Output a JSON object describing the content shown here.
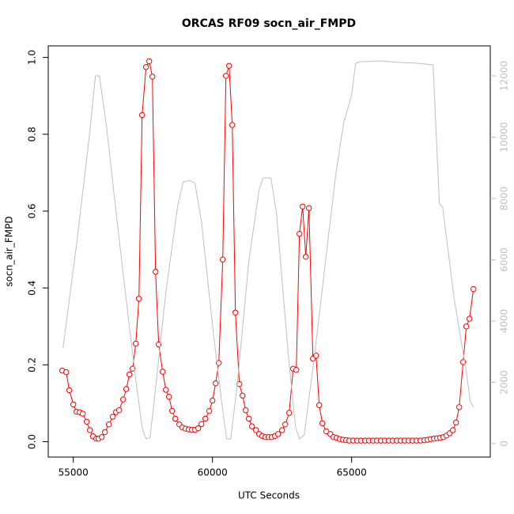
{
  "chart_data": {
    "type": "line",
    "title": "ORCAS RF09 socn_air_FMPD",
    "x_label": "UTC Seconds",
    "y_label": "socn_air_FMPD",
    "xlim": [
      54100,
      69980
    ],
    "xticks": [
      55000,
      60000,
      65000
    ],
    "ylim": [
      -0.04,
      1.03
    ],
    "yticks": [
      {
        "value": 0,
        "label": "0.0"
      },
      0.2,
      0.4,
      0.6,
      0.8,
      {
        "value": 1,
        "label": "1.0"
      }
    ],
    "y2lim": [
      -440,
      12980
    ],
    "y2ticks": [
      0,
      2000,
      4000,
      6000,
      8000,
      10000,
      12000
    ],
    "series": [
      {
        "color": "#ff0000",
        "markers": true,
        "axis": "y",
        "x": [
          54602,
          54744,
          54858,
          55000,
          55114,
          55227,
          55341,
          55483,
          55597,
          55710,
          55824,
          55909,
          56023,
          56136,
          56278,
          56420,
          56534,
          56648,
          56790,
          56903,
          57017,
          57131,
          57244,
          57358,
          57472,
          57614,
          57727,
          57841,
          57955,
          58068,
          58210,
          58324,
          58438,
          58551,
          58665,
          58807,
          58920,
          59034,
          59148,
          59261,
          59375,
          59489,
          59602,
          59744,
          59886,
          60000,
          60114,
          60227,
          60369,
          60483,
          60597,
          60710,
          60824,
          60966,
          61080,
          61193,
          61307,
          61420,
          61562,
          61676,
          61790,
          61903,
          62017,
          62131,
          62244,
          62358,
          62500,
          62614,
          62756,
          62898,
          63011,
          63125,
          63239,
          63352,
          63466,
          63608,
          63722,
          63835,
          63949,
          64091,
          64233,
          64347,
          64460,
          64574,
          64688,
          64801,
          64915,
          65057,
          65199,
          65341,
          65483,
          65625,
          65767,
          65909,
          66051,
          66193,
          66335,
          66477,
          66619,
          66761,
          66903,
          67045,
          67188,
          67330,
          67472,
          67614,
          67727,
          67841,
          67955,
          68068,
          68182,
          68295,
          68409,
          68523,
          68636,
          68750,
          68864,
          69006,
          69119,
          69233,
          69375
        ],
        "values": [
          0.185,
          0.181,
          0.134,
          0.097,
          0.078,
          0.077,
          0.073,
          0.052,
          0.03,
          0.014,
          0.008,
          0.008,
          0.012,
          0.025,
          0.045,
          0.065,
          0.077,
          0.082,
          0.11,
          0.137,
          0.175,
          0.19,
          0.255,
          0.372,
          0.85,
          0.975,
          0.99,
          0.95,
          0.442,
          0.253,
          0.182,
          0.135,
          0.117,
          0.08,
          0.06,
          0.045,
          0.037,
          0.034,
          0.032,
          0.031,
          0.031,
          0.035,
          0.046,
          0.06,
          0.08,
          0.107,
          0.152,
          0.205,
          0.474,
          0.952,
          0.978,
          0.824,
          0.336,
          0.15,
          0.12,
          0.082,
          0.06,
          0.04,
          0.03,
          0.02,
          0.015,
          0.012,
          0.012,
          0.012,
          0.015,
          0.02,
          0.03,
          0.045,
          0.075,
          0.19,
          0.187,
          0.541,
          0.612,
          0.481,
          0.608,
          0.216,
          0.224,
          0.095,
          0.048,
          0.027,
          0.02,
          0.012,
          0.01,
          0.007,
          0.005,
          0.004,
          0.003,
          0.003,
          0.003,
          0.003,
          0.003,
          0.003,
          0.003,
          0.003,
          0.003,
          0.003,
          0.003,
          0.003,
          0.003,
          0.003,
          0.003,
          0.003,
          0.003,
          0.003,
          0.003,
          0.004,
          0.005,
          0.007,
          0.008,
          0.009,
          0.01,
          0.012,
          0.016,
          0.022,
          0.03,
          0.05,
          0.09,
          0.207,
          0.3,
          0.32,
          0.397
        ]
      },
      {
        "color": "#bebebe",
        "markers": false,
        "axis": "y2",
        "x": [
          54631,
          55114,
          55568,
          55795,
          55938,
          56193,
          56477,
          56903,
          57244,
          57472,
          57614,
          57756,
          57898,
          58324,
          58750,
          58949,
          59176,
          59375,
          59602,
          60028,
          60369,
          60511,
          60653,
          60881,
          61307,
          61676,
          61818,
          62102,
          62301,
          62727,
          62983,
          63125,
          63295,
          63665,
          64062,
          64432,
          64716,
          65000,
          65142,
          65284,
          65994,
          66705,
          67415,
          67926,
          68153,
          68267,
          68693,
          69119,
          69261,
          69375
        ],
        "values": [
          3120,
          6480,
          9960,
          12000,
          12000,
          10350,
          8030,
          4670,
          2090,
          540,
          150,
          200,
          1320,
          4930,
          7770,
          8540,
          8590,
          8490,
          7250,
          3640,
          1060,
          150,
          150,
          1830,
          5960,
          8280,
          8670,
          8670,
          7510,
          2860,
          540,
          150,
          280,
          2860,
          5960,
          8800,
          10480,
          11380,
          12410,
          12460,
          12490,
          12440,
          12410,
          12360,
          7820,
          7720,
          4670,
          2350,
          1370,
          1190
        ]
      }
    ]
  }
}
